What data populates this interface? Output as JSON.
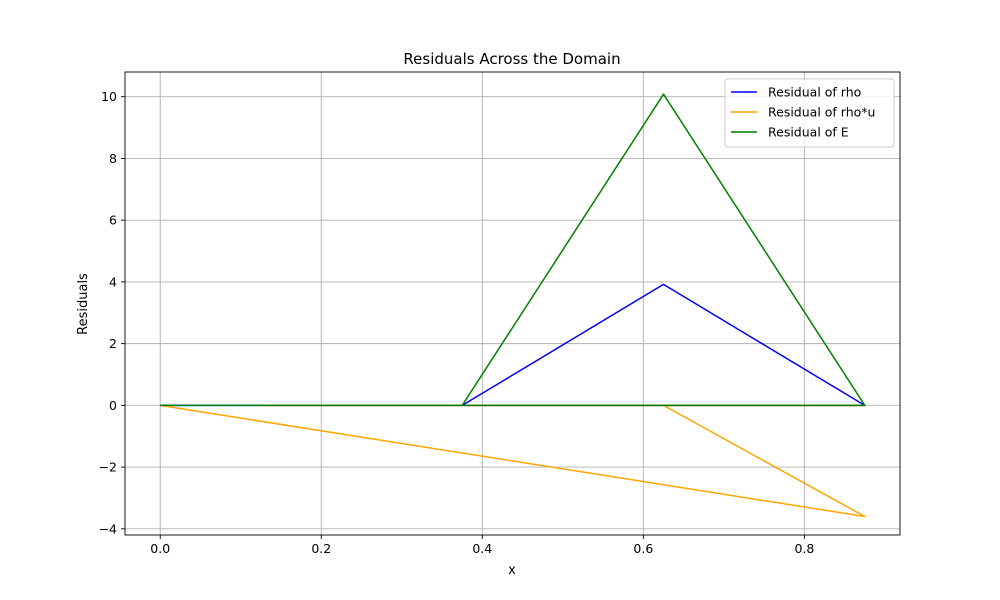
{
  "chart_data": {
    "type": "line",
    "title": "Residuals Across the Domain",
    "xlabel": "x",
    "ylabel": "Residuals",
    "xlim": [
      -0.04375,
      0.91875
    ],
    "ylim": [
      -4.2,
      10.8
    ],
    "xticks": [
      0.0,
      0.2,
      0.4,
      0.6,
      0.8
    ],
    "xtick_labels": [
      "0.0",
      "0.2",
      "0.4",
      "0.6",
      "0.8"
    ],
    "yticks": [
      -4,
      -2,
      0,
      2,
      4,
      6,
      8,
      10
    ],
    "ytick_labels": [
      "−4",
      "−2",
      "0",
      "2",
      "4",
      "6",
      "8",
      "10"
    ],
    "grid": true,
    "legend_position": "top-right",
    "series": [
      {
        "name": "Residual of rho",
        "color": "#0000ff",
        "x": [
          0,
          0.125,
          0.25,
          0.375,
          0.625,
          0.875,
          0.125,
          0.25,
          0.375,
          0.625,
          0.875
        ],
        "y": [
          0,
          0,
          0,
          0,
          3.92,
          0,
          0,
          0,
          0,
          0,
          0
        ]
      },
      {
        "name": "Residual of rho*u",
        "color": "#ffa500",
        "x": [
          0,
          0.875,
          0.625,
          0.125,
          0.25,
          0.375,
          0.625,
          0.875
        ],
        "y": [
          0,
          -3.6,
          0,
          0,
          0,
          0,
          0,
          0
        ]
      },
      {
        "name": "Residual of E",
        "color": "#008000",
        "x": [
          0,
          0.125,
          0.25,
          0.375,
          0.625,
          0.875,
          0.125,
          0.25,
          0.375,
          0.625,
          0.875
        ],
        "y": [
          0,
          0,
          0,
          0,
          10.08,
          0,
          0,
          0,
          0,
          0,
          0
        ]
      }
    ]
  }
}
